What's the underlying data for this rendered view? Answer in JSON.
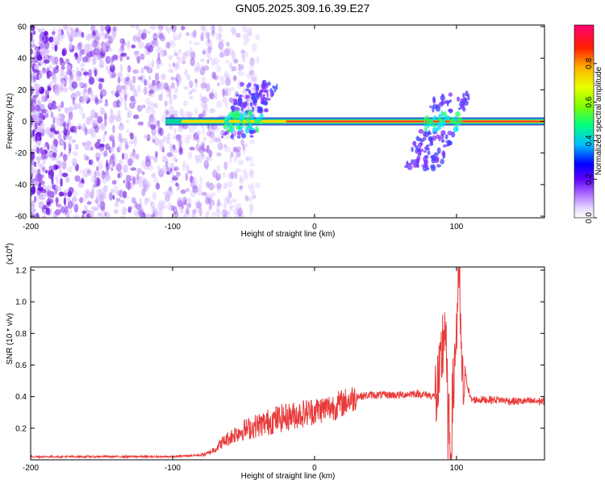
{
  "title": "GN05.2025.309.16.39.E27",
  "chart_data": [
    {
      "type": "heatmap",
      "name": "spectrogram",
      "xlabel": "Height of straight line (km)",
      "ylabel": "Frequency (Hz)",
      "xlim": [
        -200,
        162
      ],
      "ylim": [
        -61,
        61
      ],
      "xticks": [
        -200,
        -100,
        0,
        100
      ],
      "yticks": [
        60,
        40,
        20,
        0,
        -20,
        -40,
        -60
      ],
      "colorbar": {
        "label": "Normalized spectral amplitude",
        "range": [
          0,
          1
        ],
        "ticks": [
          "0.0",
          "0.2",
          "0.4",
          "0.6",
          "0.8"
        ],
        "tick_values": [
          0,
          0.2,
          0.4,
          0.6,
          0.8
        ],
        "colors": [
          "#ffffff",
          "#c8a0ff",
          "#7f00ff",
          "#0000ff",
          "#00e0ff",
          "#00ff40",
          "#c0ff00",
          "#ffd000",
          "#ff3000",
          "#ff0060"
        ]
      },
      "features": [
        {
          "region": "broadband noise",
          "x_range": [
            -200,
            -80
          ],
          "freq_range": [
            -60,
            60
          ],
          "amplitude": 0.15
        },
        {
          "region": "carrier line",
          "x_range": [
            -105,
            162
          ],
          "freq_hz": 0,
          "amplitude": 0.9
        },
        {
          "region": "burst",
          "x_center": -50,
          "freq_range": [
            -10,
            25
          ],
          "amplitude": 0.45
        },
        {
          "region": "burst",
          "x_center": 90,
          "freq_range": [
            -30,
            18
          ],
          "amplitude": 0.4
        }
      ]
    },
    {
      "type": "line",
      "name": "snr",
      "xlabel": "Height of straight line (km)",
      "ylabel": "SNR (10 * v/v)",
      "yscale_label": "(x10",
      "yscale_exp": "4",
      "yscale_close": ")",
      "xlim": [
        -200,
        162
      ],
      "ylim": [
        0,
        1.22
      ],
      "xticks": [
        -200,
        -100,
        0,
        100
      ],
      "yticks": [
        "1.2",
        "1.0",
        "0.8",
        "0.6",
        "0.4",
        "0.2"
      ],
      "ytick_values": [
        1.2,
        1.0,
        0.8,
        0.6,
        0.4,
        0.2
      ],
      "color": "#e83a3a",
      "x": [
        -200,
        -180,
        -160,
        -140,
        -120,
        -100,
        -90,
        -80,
        -75,
        -70,
        -65,
        -60,
        -55,
        -50,
        -45,
        -40,
        -35,
        -30,
        -25,
        -20,
        -15,
        -10,
        -5,
        0,
        5,
        10,
        15,
        20,
        25,
        30,
        40,
        50,
        60,
        70,
        80,
        85,
        88,
        90,
        92,
        94,
        96,
        98,
        100,
        102,
        104,
        106,
        110,
        120,
        130,
        140,
        150,
        162
      ],
      "y": [
        0.02,
        0.02,
        0.02,
        0.02,
        0.02,
        0.02,
        0.025,
        0.03,
        0.04,
        0.07,
        0.11,
        0.14,
        0.17,
        0.19,
        0.2,
        0.22,
        0.23,
        0.25,
        0.26,
        0.27,
        0.28,
        0.29,
        0.3,
        0.31,
        0.32,
        0.33,
        0.34,
        0.36,
        0.38,
        0.4,
        0.41,
        0.41,
        0.41,
        0.42,
        0.41,
        0.4,
        0.45,
        0.7,
        0.9,
        0.2,
        0.05,
        0.5,
        0.85,
        1.2,
        0.4,
        0.55,
        0.38,
        0.38,
        0.38,
        0.37,
        0.37,
        0.37
      ]
    }
  ]
}
